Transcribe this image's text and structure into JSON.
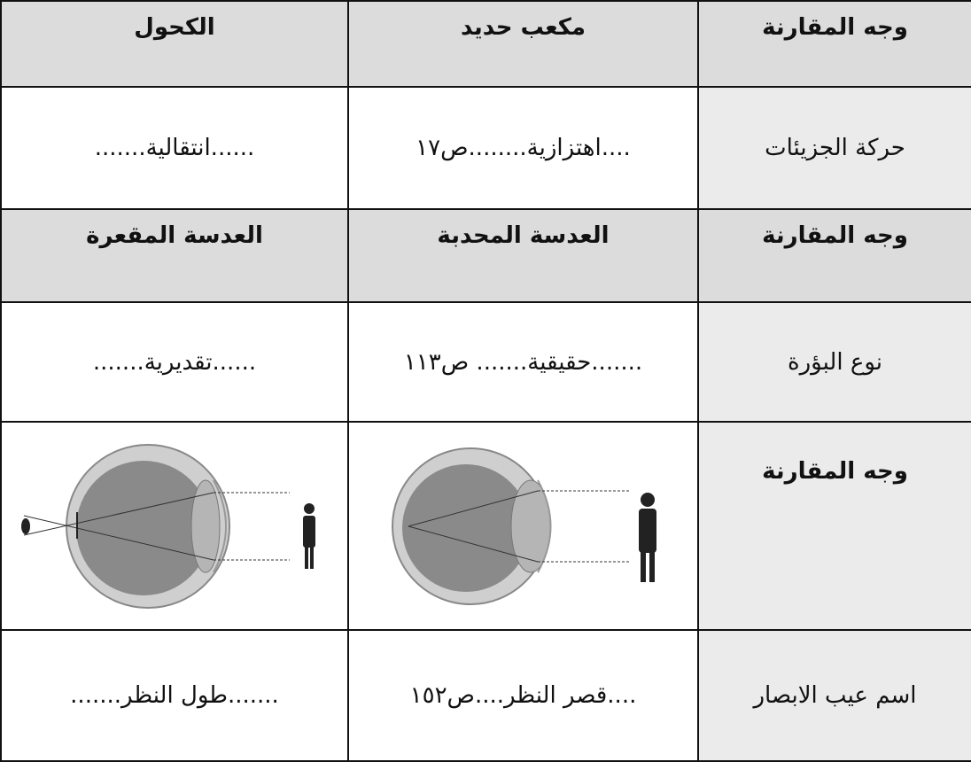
{
  "table": {
    "rows": [
      [
        "وجه المقارنة",
        "مكعب حديد",
        "الكحول"
      ],
      [
        "حركة الجزيئات",
        "....اهتزازية........ص١٧",
        "......انتقالية......."
      ],
      [
        "وجه المقارنة",
        "العدسة المحدبة",
        "العدسة المقعرة"
      ],
      [
        "نوع البؤرة",
        ".......حقيقية....... ص١١٣",
        "......تقديرية......."
      ],
      [
        "وجه المقارنة"
      ],
      [
        "اسم عيب الابصار",
        "....قصر النظر....ص١٥٢",
        ".......طول النظر......."
      ]
    ]
  }
}
